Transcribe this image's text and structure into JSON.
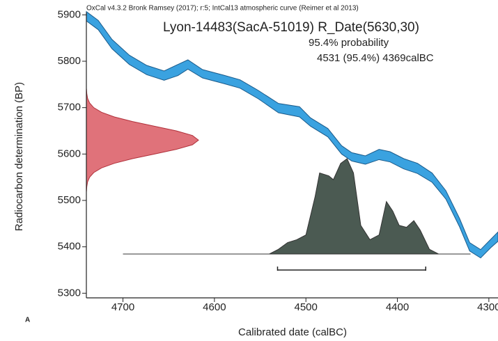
{
  "chart_data": {
    "type": "calibration",
    "header": "OxCal v4.3.2 Bronk Ramsey (2017); r:5; IntCal13 atmospheric curve (Reimer et al 2013)",
    "title": "Lyon-14483(SacA-51019) R_Date(5630,30)",
    "probability_label": "95.4% probability",
    "range_label": "4531 (95.4%) 4369calBC",
    "panel_label": "A",
    "x_label": "Calibrated date (calBC)",
    "y_label": "Radiocarbon determination (BP)",
    "xlim": [
      4740,
      4290
    ],
    "ylim": [
      5290,
      5905
    ],
    "xticks": [
      4700,
      4600,
      4500,
      4400,
      4300
    ],
    "yticks": [
      5300,
      5400,
      5500,
      5600,
      5700,
      5800,
      5900
    ],
    "curve": {
      "color": "#3aa2e0",
      "x": [
        4740,
        4727,
        4712,
        4693,
        4674,
        4655,
        4640,
        4629,
        4613,
        4590,
        4572,
        4552,
        4530,
        4507,
        4495,
        4476,
        4461,
        4450,
        4435,
        4420,
        4408,
        4393,
        4378,
        4362,
        4347,
        4332,
        4321,
        4309,
        4298,
        4290
      ],
      "upper": [
        5907,
        5888,
        5847,
        5813,
        5791,
        5779,
        5793,
        5803,
        5782,
        5770,
        5760,
        5737,
        5709,
        5702,
        5678,
        5655,
        5618,
        5603,
        5596,
        5610,
        5605,
        5590,
        5580,
        5559,
        5521,
        5461,
        5409,
        5394,
        5416,
        5432
      ],
      "lower": [
        5887,
        5868,
        5827,
        5793,
        5771,
        5759,
        5769,
        5783,
        5764,
        5752,
        5742,
        5719,
        5689,
        5680,
        5660,
        5637,
        5600,
        5585,
        5578,
        5588,
        5583,
        5568,
        5558,
        5539,
        5503,
        5443,
        5391,
        5376,
        5398,
        5412
      ]
    },
    "date_distribution": {
      "color": "#e0727a",
      "bp": [
        5520,
        5530,
        5540,
        5550,
        5560,
        5570,
        5580,
        5590,
        5600,
        5610,
        5620,
        5630,
        5640,
        5650,
        5660,
        5670,
        5680,
        5690,
        5700,
        5710,
        5720,
        5730,
        5740
      ],
      "prob": [
        0.001,
        0.004,
        0.011,
        0.029,
        0.066,
        0.135,
        0.249,
        0.411,
        0.607,
        0.801,
        0.946,
        1,
        0.946,
        0.801,
        0.607,
        0.411,
        0.249,
        0.135,
        0.066,
        0.029,
        0.011,
        0.004,
        0.001
      ]
    },
    "calibrated_distribution": {
      "color": "#4b5a52",
      "x": [
        4700,
        4540,
        4530,
        4520,
        4510,
        4500,
        4490,
        4485,
        4475,
        4470,
        4462,
        4455,
        4448,
        4440,
        4430,
        4420,
        4412,
        4405,
        4398,
        4390,
        4382,
        4375,
        4365,
        4355,
        4320
      ],
      "prob": [
        0,
        0,
        0.05,
        0.12,
        0.15,
        0.2,
        0.6,
        0.85,
        0.82,
        0.78,
        0.95,
        1,
        0.85,
        0.3,
        0.15,
        0.2,
        0.55,
        0.45,
        0.3,
        0.28,
        0.35,
        0.25,
        0.05,
        0,
        0
      ]
    },
    "range": [
      4531,
      4369
    ]
  }
}
